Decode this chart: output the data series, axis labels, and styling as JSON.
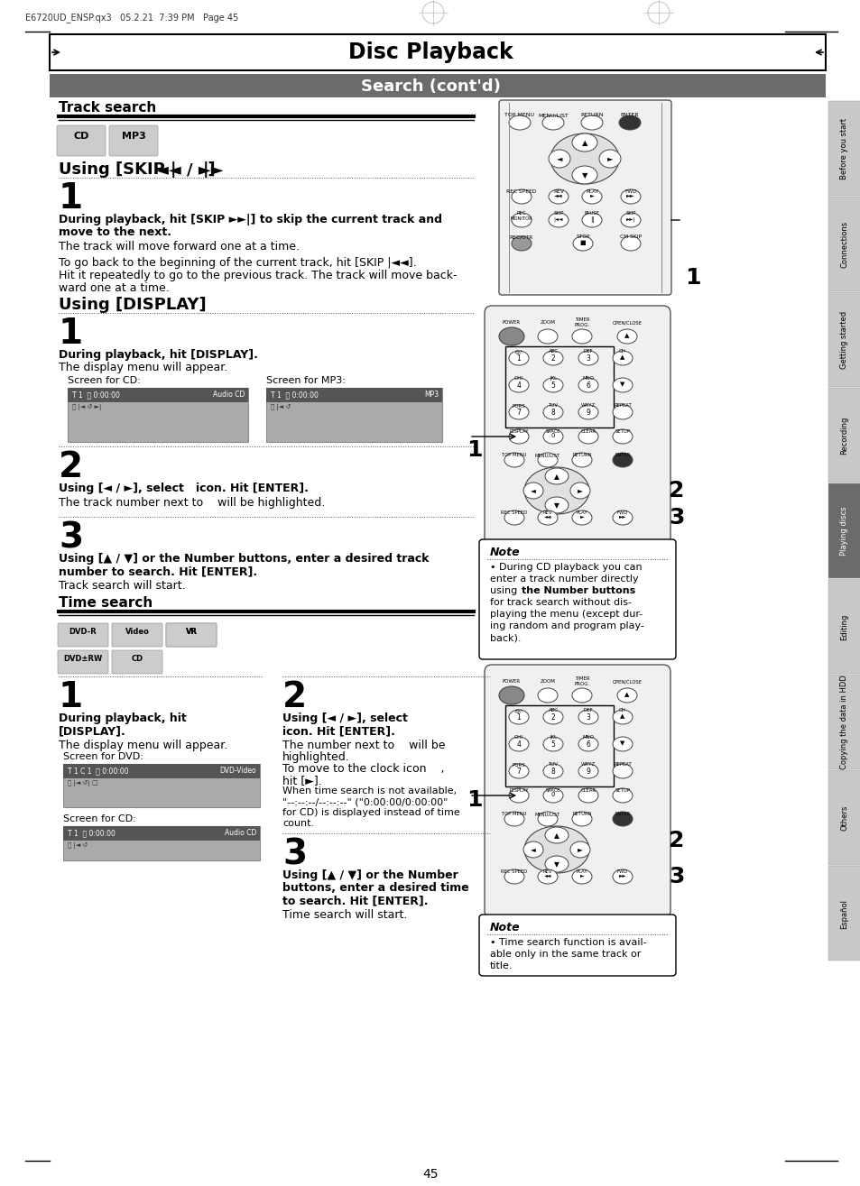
{
  "title": "Disc Playback",
  "subtitle": "Search (cont'd)",
  "header_text": "E6720UD_ENSP.qx3   05.2.21  7:39 PM   Page 45",
  "page_number": "45",
  "bg_color": "#ffffff",
  "subtitle_bg": "#6b6b6b",
  "subtitle_color": "#ffffff",
  "section1_title": "Track search",
  "skip_heading": "Using [SKIP |<< / >>|]",
  "step1_bold": "During playback, hit [SKIP ►►|] to skip the current track and\nmove to the next.",
  "step1_normal": "The track will move forward one at a time.",
  "step1_normal2": "To go back to the beginning of the current track, hit [SKIP |<<].\nHit it repeatedly to go to the previous track. The track will move back-\nward one at a time.",
  "display_heading": "Using [DISPLAY]",
  "display_step1_bold": "During playback, hit [DISPLAY].",
  "display_step1_normal": "The display menu will appear.",
  "screen_cd": "Screen for CD:",
  "screen_mp3": "Screen for MP3:",
  "cd_screen_text": "T 1  0:00:00      Audio CD",
  "mp3_screen_text": "T 1  0:00:00                MP3",
  "step2_bold": "Using [< / >], select   icon. Hit [ENTER].",
  "step2_normal": "The track number next to   will be highlighted.",
  "step3_bold": "Using [^ / v] or the Number buttons, enter a desired track\nnumber to search. Hit [ENTER].",
  "step3_normal": "Track search will start.",
  "section2_title": "Time search",
  "time_step1_bold": "During playback, hit\n[DISPLAY].",
  "time_step1_normal": "The display menu will appear.",
  "screen_dvd": "Screen for DVD:",
  "screen_cd2": "Screen for CD:",
  "dvd_screen_text": "T 1 C 1  0:00:00      DVD-Video",
  "cd2_screen_text": "T 1  0:00:00      Audio CD",
  "time_step2_bold": "Using [< / >], select \nicon. Hit [ENTER].",
  "time_step2_normal1": "The number next to   will be",
  "time_step2_normal2": "highlighted.",
  "time_step2_normal3": "To move to the clock icon   ,",
  "time_step2_normal4": "hit [>].",
  "time_step2_normal5": "When time search is not available,",
  "time_step2_normal6": "\"--:--:--/--:--:--\" (\"0:00:00/0:00:00\"",
  "time_step2_normal7": "for CD) is displayed instead of time",
  "time_step2_normal8": "count.",
  "time_step3_bold": "Using [^ / v] or the Number\nbuttons, enter a desired time\nto search. Hit [ENTER].",
  "time_step3_normal": "Time search will start.",
  "note1_title": "Note",
  "note1_lines": [
    "• During CD playback you can",
    "enter a track number directly",
    "using the Number buttons",
    "for track search without dis-",
    "playing the menu (except dur-",
    "ing random and program play-",
    "back)."
  ],
  "note1_bold_word": "the Number buttons",
  "note2_title": "Note",
  "note2_lines": [
    "• Time search function is avail-",
    "able only in the same track or",
    "title."
  ],
  "tabs": [
    "Before you start",
    "Connections",
    "Getting started",
    "Recording",
    "Playing discs",
    "Editing",
    "Copying the data in HDD",
    "Others",
    "Español"
  ],
  "tab_active": 4
}
